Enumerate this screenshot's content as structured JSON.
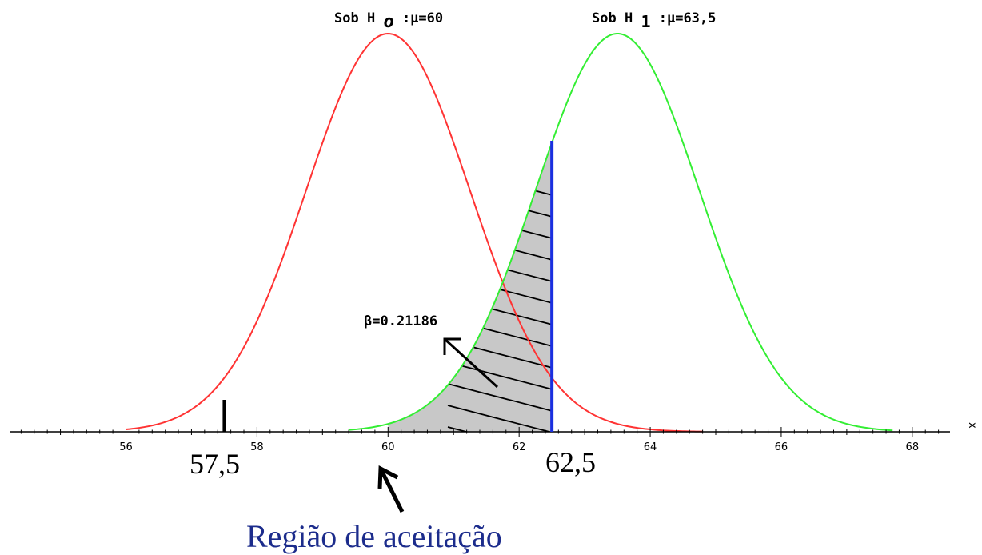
{
  "chart_data": {
    "type": "line",
    "x_ticks": [
      56,
      58,
      60,
      62,
      64,
      66,
      68
    ],
    "xlim": [
      54.2,
      68.6
    ],
    "x_axis_label": "x",
    "sigma": 1.25,
    "series": [
      {
        "name": "Sob H 0 :μ=60",
        "label_main": "Sob H",
        "label_sub": "o",
        "label_rest": ":μ=60",
        "mu": 60,
        "color": "#ff3333"
      },
      {
        "name": "Sob H1:μ=63,5",
        "label_main": "Sob H",
        "label_sub": "1",
        "label_rest": ":μ=63,5",
        "mu": 63.5,
        "color": "#33ee33"
      }
    ],
    "critical_line": {
      "x": 62.5,
      "color": "#1a2fe0"
    },
    "lower_marker": {
      "x": 57.5
    },
    "shaded_region": {
      "from": 60,
      "to": 62.5,
      "fill": "#c8c8c8"
    },
    "annotations": {
      "beta": "β=0.21186",
      "lower_value": "57,5",
      "upper_value": "62,5",
      "region": "Região de aceitação"
    }
  }
}
